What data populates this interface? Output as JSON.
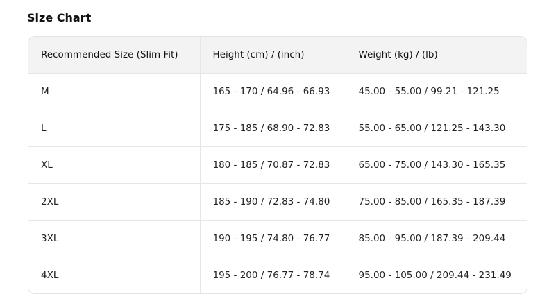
{
  "title": "Size Chart",
  "table": {
    "headers": [
      "Recommended Size (Slim Fit)",
      "Height (cm) / (inch)",
      "Weight (kg) / (lb)"
    ],
    "rows": [
      [
        "M",
        "165 - 170 / 64.96 - 66.93",
        "45.00 - 55.00 / 99.21 - 121.25"
      ],
      [
        "L",
        "175 - 185 / 68.90 - 72.83",
        "55.00 - 65.00 / 121.25 - 143.30"
      ],
      [
        "XL",
        "180 - 185 / 70.87 - 72.83",
        "65.00 - 75.00 / 143.30 - 165.35"
      ],
      [
        "2XL",
        "185 - 190 / 72.83 - 74.80",
        "75.00 - 85.00 / 165.35 - 187.39"
      ],
      [
        "3XL",
        "190 - 195 / 74.80 - 76.77",
        "85.00 - 95.00 / 187.39 - 209.44"
      ],
      [
        "4XL",
        "195 - 200 / 76.77 - 78.74",
        "95.00 - 105.00 / 209.44 - 231.49"
      ]
    ]
  }
}
